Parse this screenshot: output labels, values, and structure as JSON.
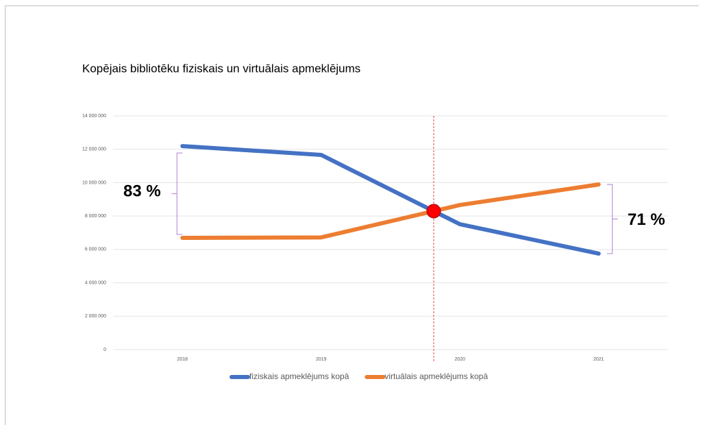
{
  "chart_data": {
    "type": "line",
    "title": "Kopējais bibliotēku fiziskais un virtuālais apmeklējums",
    "categories": [
      "2018",
      "2019",
      "2020",
      "2021"
    ],
    "series": [
      {
        "name": "fiziskais apmeklējums kopā",
        "color": "#4472c4",
        "values": [
          12190000,
          11660000,
          7510000,
          5750000
        ]
      },
      {
        "name": "virtuālais apmeklējums kopā",
        "color": "#ed7d31",
        "values": [
          6690000,
          6720000,
          8660000,
          9890000
        ]
      }
    ],
    "ylim": [
      0,
      14000000
    ],
    "yticks": [
      0,
      {
        "value": 2000000,
        "label": "2 000 000"
      },
      {
        "value": 4000000,
        "label": "4 000 000"
      },
      {
        "value": 6000000,
        "label": "6 000 000"
      },
      {
        "value": 8000000,
        "label": "8 000 000"
      },
      {
        "value": 10000000,
        "label": "10 000 000"
      },
      {
        "value": 12000000,
        "label": "12 000 000"
      },
      {
        "value": 14000000,
        "label": "14 000 000"
      }
    ],
    "grid": true,
    "legend": "bottom",
    "annotations": [
      "83 %",
      "71 %"
    ]
  }
}
